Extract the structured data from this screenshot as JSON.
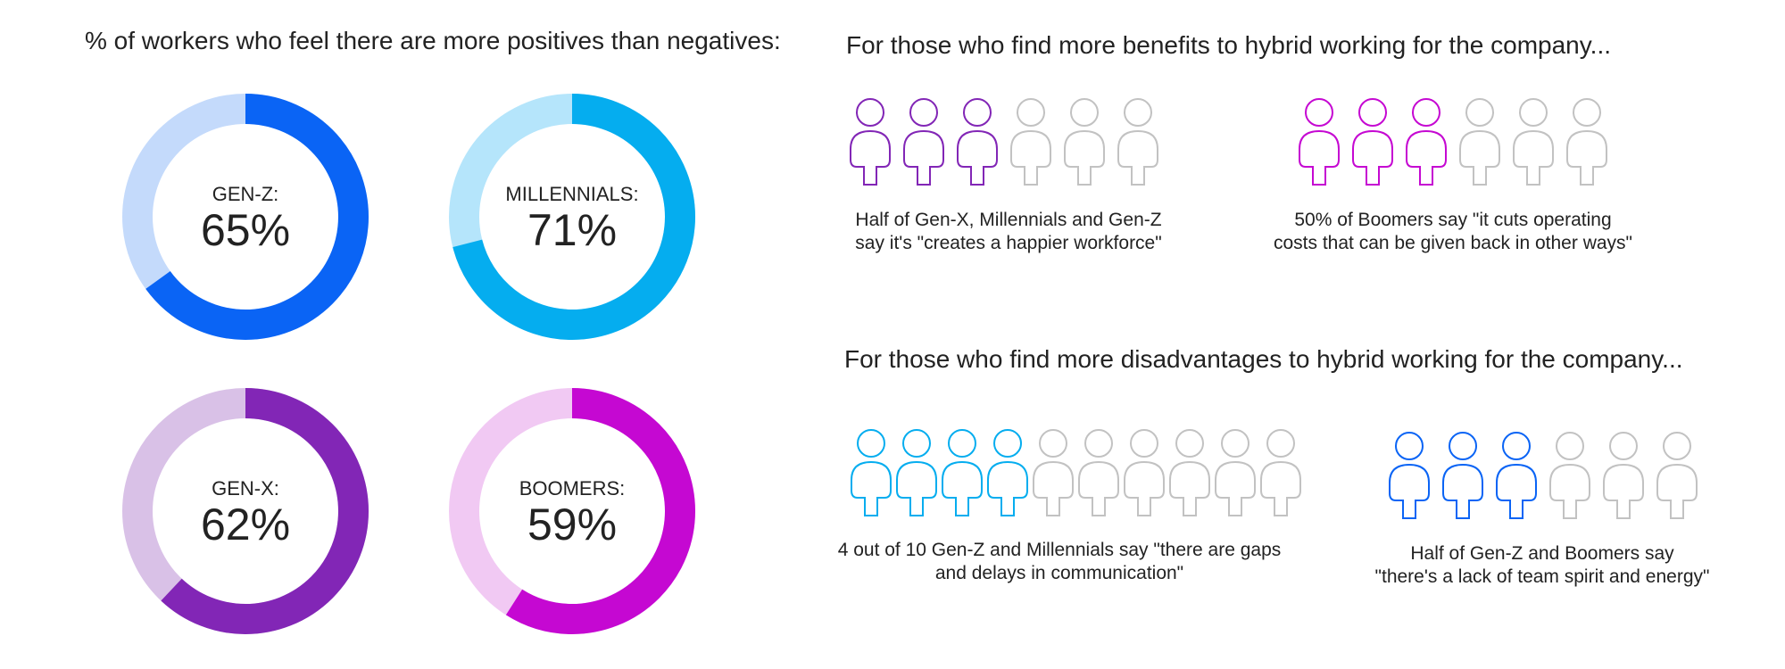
{
  "left_title": "% of workers who feel there are more positives than negatives:",
  "chart_data": {
    "type": "pie",
    "title": "% of workers who feel there are more positives than negatives:",
    "unit": "%",
    "series": [
      {
        "name": "GEN-Z:",
        "value": 65,
        "color": "#0A64F5",
        "track_color": "#C4DAFB"
      },
      {
        "name": "MILLENNIALS:",
        "value": 71,
        "color": "#05ADEF",
        "track_color": "#B5E5FB"
      },
      {
        "name": "GEN-X:",
        "value": 62,
        "color": "#8226B6",
        "track_color": "#D9C1E7"
      },
      {
        "name": "BOOMERS:",
        "value": 59,
        "color": "#C508D2",
        "track_color": "#F1C9F3"
      }
    ]
  },
  "benefits": {
    "title": "For those who find more benefits to hybrid working for the company...",
    "groups": [
      {
        "filled": 3,
        "total": 6,
        "color": "#8226B6",
        "icon": "person-icon",
        "lines": [
          "Half of Gen-X, Millennials and Gen-Z",
          "say it's \"creates a happier workforce\""
        ]
      },
      {
        "filled": 3,
        "total": 6,
        "color": "#C508D2",
        "icon": "person-icon",
        "lines": [
          "50% of Boomers say \"it cuts operating",
          "costs that can be given back in other ways\""
        ]
      }
    ]
  },
  "disadvantages": {
    "title": "For those who find more disadvantages to hybrid working for the company...",
    "groups": [
      {
        "filled": 4,
        "total": 10,
        "color": "#05ADEF",
        "icon": "person-icon",
        "lines": [
          "4 out of 10 Gen-Z and Millennials say \"there are gaps",
          "and delays in communication\""
        ]
      },
      {
        "filled": 3,
        "total": 6,
        "color": "#0A64F5",
        "icon": "person-icon",
        "lines": [
          "Half of Gen-Z and Boomers say",
          "\"there's a lack of team spirit and energy\""
        ]
      }
    ]
  },
  "inactive_icon_color": "#C2C2C2"
}
